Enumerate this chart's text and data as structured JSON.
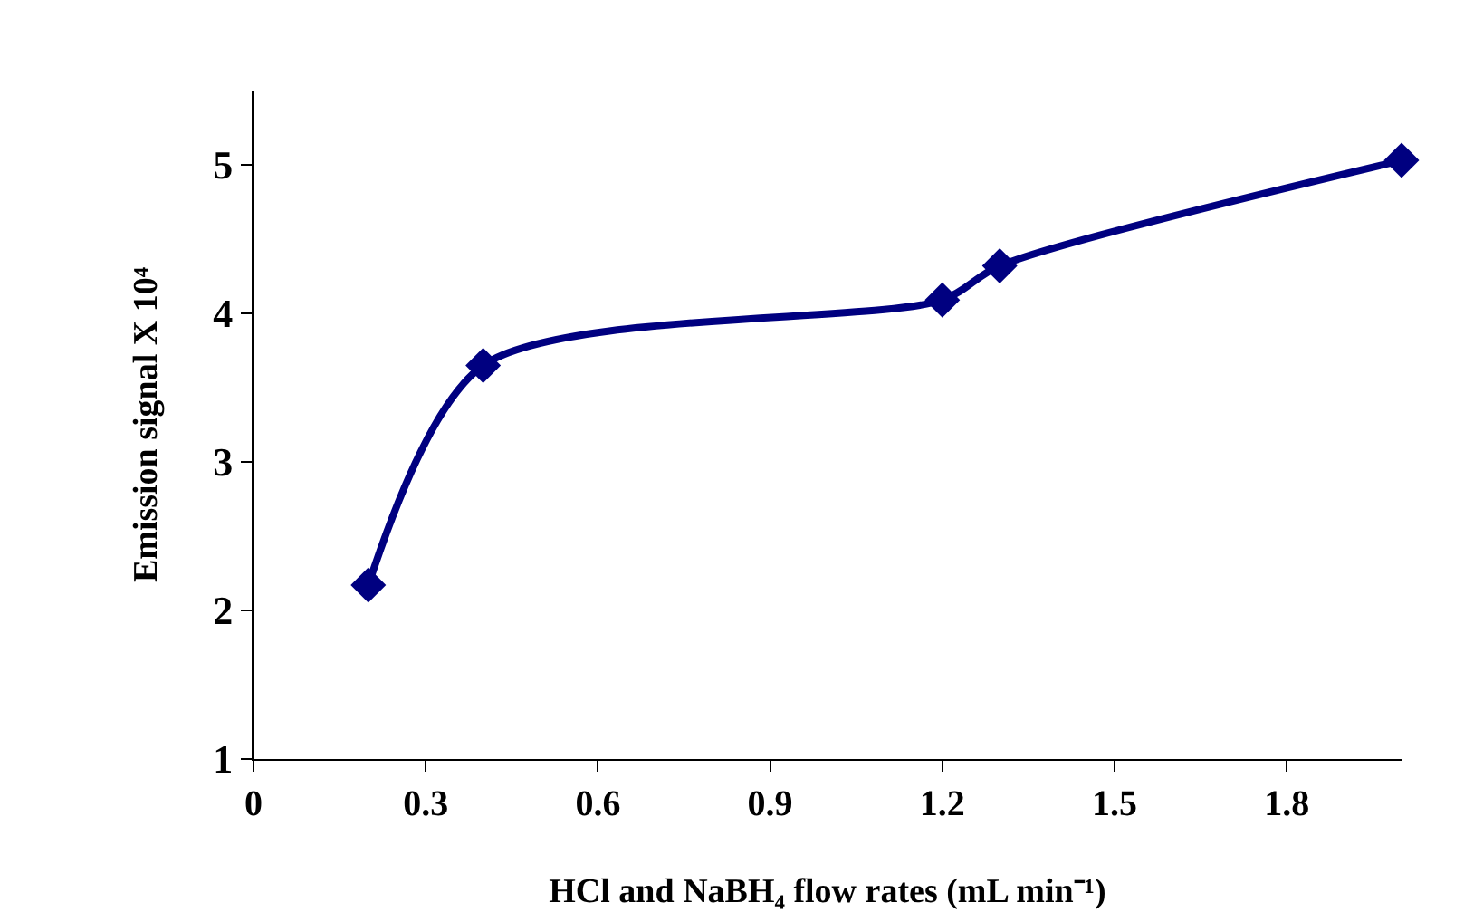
{
  "chart_data": {
    "type": "line",
    "xlabel": "HCl and NaBH₄ flow rates (mL min⁻¹)",
    "ylabel": "Emission signal X 10⁴",
    "x": [
      0.2,
      0.4,
      1.2,
      1.3,
      2.0
    ],
    "series": [
      {
        "color": "#000080",
        "values": [
          2.17,
          3.65,
          4.09,
          4.32,
          5.03
        ]
      }
    ],
    "xlim": [
      0,
      2.0
    ],
    "xticks": [
      0,
      0.3,
      0.6,
      0.9,
      1.2,
      1.5,
      1.8
    ],
    "ylim": [
      1,
      5.5
    ],
    "yticks": [
      1,
      2,
      3,
      4,
      5
    ],
    "marker": "diamond",
    "line_style": "solid"
  }
}
